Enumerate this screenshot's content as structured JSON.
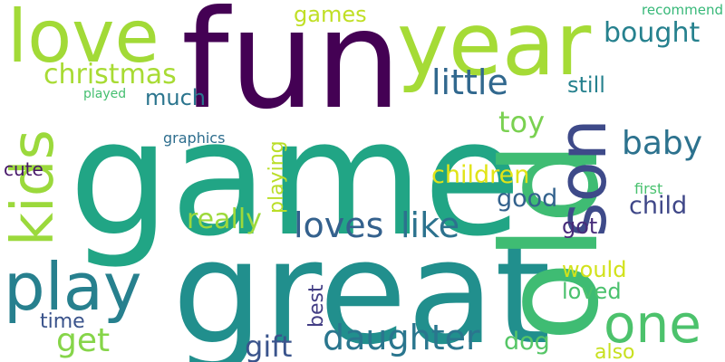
{
  "background": "#ffffff",
  "words": [
    {
      "text": "game",
      "color": "#21a585"
    },
    {
      "text": "great",
      "color": "#218f8d"
    },
    {
      "text": "fun",
      "color": "#440154"
    },
    {
      "text": "old",
      "color": "#3fbc73"
    },
    {
      "text": "year",
      "color": "#a5db36"
    },
    {
      "text": "love",
      "color": "#a2da37"
    },
    {
      "text": "son",
      "color": "#3e4a89"
    },
    {
      "text": "kids",
      "color": "#9bd93c"
    },
    {
      "text": "play",
      "color": "#27808e"
    },
    {
      "text": "one",
      "color": "#4cc26c"
    },
    {
      "text": "loves",
      "color": "#34618d"
    },
    {
      "text": "like",
      "color": "#2c728e"
    },
    {
      "text": "daughter",
      "color": "#2a768e"
    },
    {
      "text": "christmas",
      "color": "#a8db34"
    },
    {
      "text": "little",
      "color": "#31688e"
    },
    {
      "text": "baby",
      "color": "#2c728e"
    },
    {
      "text": "toy",
      "color": "#7ad151"
    },
    {
      "text": "really",
      "color": "#9dd93b"
    },
    {
      "text": "bought",
      "color": "#26818e"
    },
    {
      "text": "games",
      "color": "#c0df25"
    },
    {
      "text": "children",
      "color": "#e1e418"
    },
    {
      "text": "gift",
      "color": "#3a548c"
    },
    {
      "text": "get",
      "color": "#86d549"
    },
    {
      "text": "good",
      "color": "#33628d"
    },
    {
      "text": "child",
      "color": "#3f4788"
    },
    {
      "text": "much",
      "color": "#2b758e"
    },
    {
      "text": "dog",
      "color": "#56c667"
    },
    {
      "text": "would",
      "color": "#d2e21b"
    },
    {
      "text": "loved",
      "color": "#4ac16d"
    },
    {
      "text": "playing",
      "color": "#bade28"
    },
    {
      "text": "still",
      "color": "#26818e"
    },
    {
      "text": "got",
      "color": "#472c7a"
    },
    {
      "text": "time",
      "color": "#3a538b"
    },
    {
      "text": "best",
      "color": "#433e85"
    },
    {
      "text": "cute",
      "color": "#48186a"
    },
    {
      "text": "also",
      "color": "#c8e020"
    },
    {
      "text": "graphics",
      "color": "#2e6e8e"
    },
    {
      "text": "first",
      "color": "#48c16e"
    },
    {
      "text": "played",
      "color": "#45bf70"
    },
    {
      "text": "recommend",
      "color": "#37b878"
    }
  ]
}
